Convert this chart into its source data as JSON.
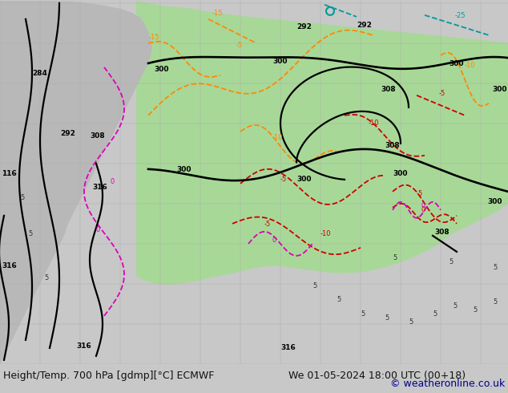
{
  "title_left": "Height/Temp. 700 hPa [gdmp][°C] ECMWF",
  "title_right": "We 01-05-2024 18:00 UTC (00+18)",
  "copyright": "© weatheronline.co.uk",
  "bg_color": "#c8c8c8",
  "bottom_bar_color": "#ffffff",
  "text_color_left": "#111111",
  "text_color_right": "#111111",
  "text_color_copyright": "#00008b",
  "font_size_bottom": 9.0,
  "fig_width": 6.34,
  "fig_height": 4.9,
  "dpi": 100,
  "map_green": "#a8d898",
  "map_gray": "#b8b8b8",
  "col_black": "#000000",
  "col_orange": "#ff8800",
  "col_red": "#cc0000",
  "col_magenta": "#dd00bb",
  "col_teal": "#009999",
  "col_darkred": "#cc2222"
}
